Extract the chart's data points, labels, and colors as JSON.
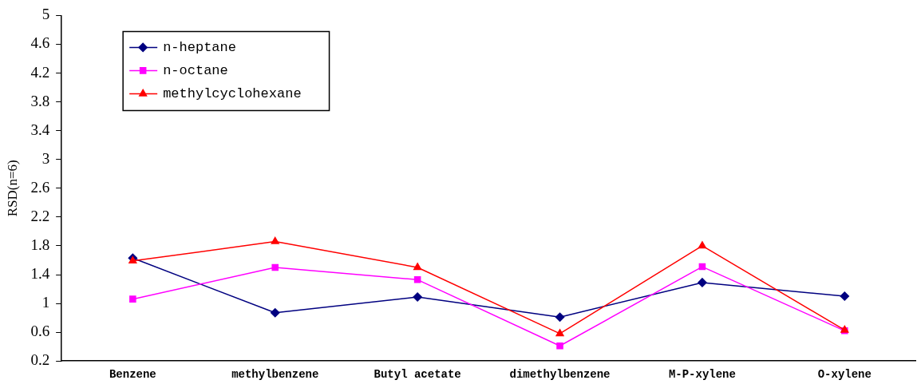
{
  "chart_data": {
    "type": "line",
    "ylabel": "RSD(n=6)",
    "categories": [
      "Benzene",
      "methylbenzene",
      "Butyl acetate",
      "dimethylbenzene",
      "M-P-xylene",
      "O-xylene"
    ],
    "series": [
      {
        "name": "n-heptane",
        "color": "#000080",
        "marker": "diamond",
        "values": [
          1.63,
          0.87,
          1.09,
          0.81,
          1.29,
          1.1
        ]
      },
      {
        "name": "n-octane",
        "color": "#ff00ff",
        "marker": "square",
        "values": [
          1.06,
          1.5,
          1.33,
          0.41,
          1.51,
          0.62
        ]
      },
      {
        "name": "methylcyclohexane",
        "color": "#ff0000",
        "marker": "triangle",
        "values": [
          1.59,
          1.86,
          1.5,
          0.58,
          1.8,
          0.63
        ]
      }
    ],
    "ylim": [
      0.2,
      5
    ],
    "yticks": [
      0.2,
      0.6,
      1,
      1.4,
      1.8,
      2.2,
      2.6,
      3,
      3.4,
      3.8,
      4.2,
      4.6,
      5
    ],
    "grid": false,
    "legend": "top left",
    "line_style": "solid"
  }
}
